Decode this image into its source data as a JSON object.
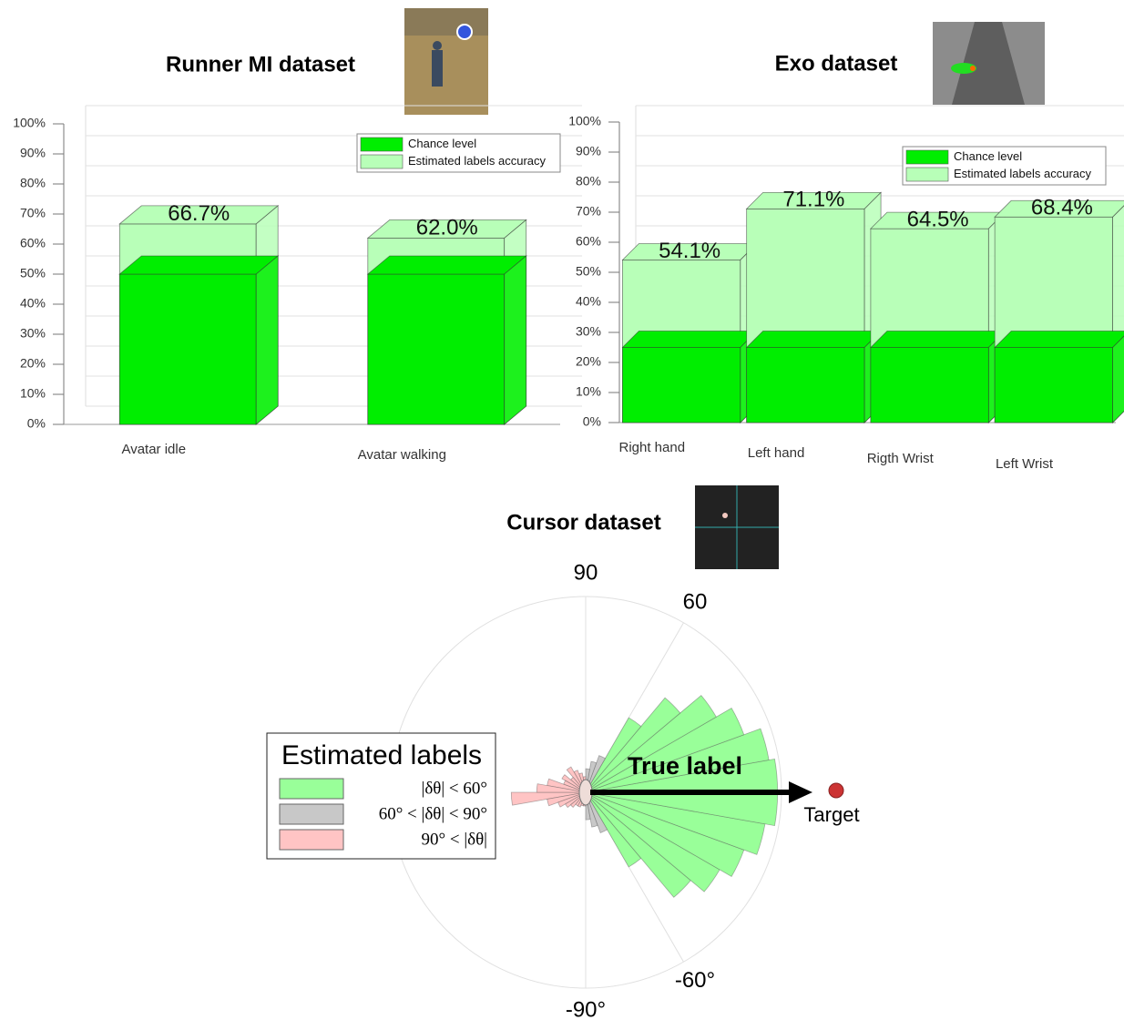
{
  "chart_data": [
    {
      "type": "bar3d",
      "title": "Runner MI dataset",
      "categories": [
        "Avatar idle",
        "Avatar walking"
      ],
      "series": [
        {
          "name": "Chance level",
          "color": "#00ee00",
          "values": [
            50,
            50
          ]
        },
        {
          "name": "Estimated labels accuracy",
          "color": "#b8ffb8",
          "values": [
            66.7,
            62.0
          ],
          "value_labels": [
            "66.7%",
            "62.0%"
          ]
        }
      ],
      "ylim": [
        0,
        100
      ],
      "yticks": [
        {
          "value": 0,
          "label": "0%"
        },
        {
          "value": 10,
          "label": "10%"
        },
        {
          "value": 20,
          "label": "20%"
        },
        {
          "value": 30,
          "label": "30%"
        },
        {
          "value": 40,
          "label": "40%"
        },
        {
          "value": 50,
          "label": "50%"
        },
        {
          "value": 60,
          "label": "60%"
        },
        {
          "value": 70,
          "label": "70%"
        },
        {
          "value": 80,
          "label": "80%"
        },
        {
          "value": 90,
          "label": "90%"
        },
        {
          "value": 100,
          "label": "100%"
        }
      ],
      "grid": true,
      "legend": "upper right"
    },
    {
      "type": "bar3d",
      "title": "Exo dataset",
      "categories": [
        "Right hand",
        "Left hand",
        "Rigth Wrist",
        "Left Wrist"
      ],
      "series": [
        {
          "name": "Chance level",
          "color": "#00ee00",
          "values": [
            25,
            25,
            25,
            25
          ]
        },
        {
          "name": "Estimated labels accuracy",
          "color": "#b8ffb8",
          "values": [
            54.1,
            71.1,
            64.5,
            68.4
          ],
          "value_labels": [
            "54.1%",
            "71.1%",
            "64.5%",
            "68.4%"
          ]
        }
      ],
      "ylim": [
        0,
        100
      ],
      "yticks": [
        {
          "value": 0,
          "label": "0%"
        },
        {
          "value": 10,
          "label": "10%"
        },
        {
          "value": 20,
          "label": "20%"
        },
        {
          "value": 30,
          "label": "30%"
        },
        {
          "value": 40,
          "label": "40%"
        },
        {
          "value": 50,
          "label": "50%"
        },
        {
          "value": 60,
          "label": "60%"
        },
        {
          "value": 70,
          "label": "70%"
        },
        {
          "value": 80,
          "label": "80%"
        },
        {
          "value": 90,
          "label": "90%"
        },
        {
          "value": 100,
          "label": "100%"
        }
      ],
      "grid": true,
      "legend": "upper right"
    },
    {
      "type": "polar_histogram",
      "title": "Cursor dataset",
      "theta_bins": [
        -180,
        -170,
        -160,
        -150,
        -140,
        -130,
        -120,
        -110,
        -100,
        -90,
        -80,
        -70,
        -60,
        -50,
        -40,
        -30,
        -20,
        -10,
        0,
        10,
        20,
        30,
        40,
        50,
        60,
        70,
        80,
        90,
        100,
        110,
        120,
        130,
        140,
        150,
        160,
        170,
        180
      ],
      "theta_ticks": [
        90,
        60,
        {
          "value": -60,
          "label": "-60°"
        },
        {
          "value": -90,
          "label": "-90°"
        }
      ],
      "rlim": [
        0,
        1
      ],
      "legend_title": "Estimated labels",
      "series": [
        {
          "name": "|δθ| < 60°",
          "color": "#99ff99",
          "values": [
            null,
            null,
            null,
            null,
            null,
            null,
            null,
            null,
            null,
            null,
            null,
            null,
            0.44,
            0.7,
            0.79,
            0.86,
            0.93,
            0.98,
            0.98,
            0.95,
            0.86,
            0.77,
            0.63,
            0.44,
            null,
            null,
            null,
            null,
            null,
            null,
            null,
            null,
            null,
            null,
            null,
            null
          ]
        },
        {
          "name": "60° < |δθ| < 90°",
          "color": "#c8c8c8",
          "values": [
            null,
            null,
            null,
            null,
            null,
            null,
            null,
            null,
            null,
            0.14,
            0.18,
            0.22,
            null,
            null,
            null,
            null,
            null,
            null,
            null,
            null,
            null,
            null,
            null,
            null,
            0.2,
            0.16,
            0.12,
            null,
            null,
            null,
            null,
            null,
            null,
            null,
            null,
            null
          ]
        },
        {
          "name": "90° < |δθ|",
          "color": "#ffc4c4",
          "values": [
            0.38,
            0.2,
            0.15,
            0.12,
            0.1,
            0.08,
            0.08,
            0.07,
            0.07,
            null,
            null,
            null,
            null,
            null,
            null,
            null,
            null,
            null,
            null,
            null,
            null,
            null,
            null,
            null,
            null,
            null,
            null,
            0.08,
            0.1,
            0.12,
            0.15,
            0.1,
            0.14,
            0.12,
            0.2,
            0.25
          ]
        }
      ],
      "annotations": [
        "True label",
        "Target"
      ]
    }
  ]
}
